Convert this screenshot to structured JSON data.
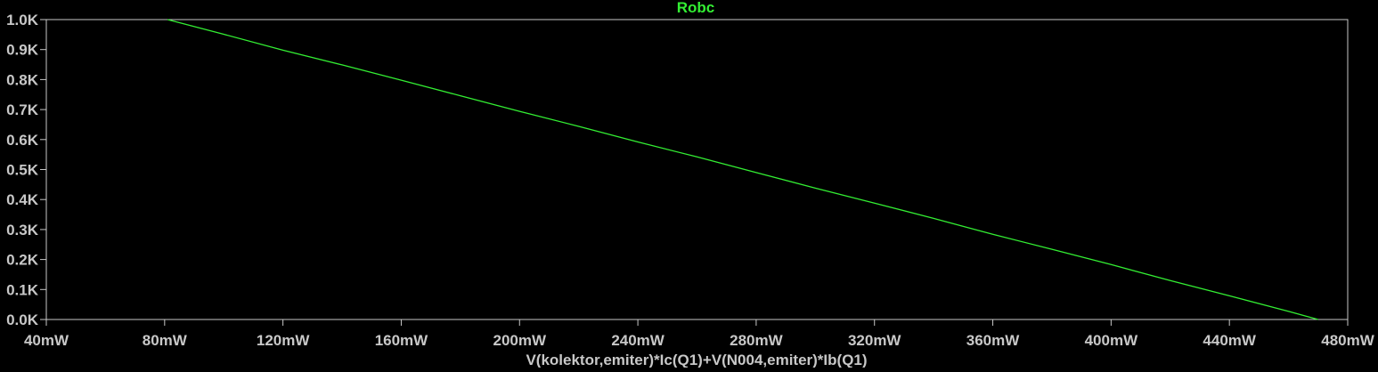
{
  "chart_data": {
    "type": "line",
    "title": "Robc",
    "xlabel": "V(kolektor,emiter)*Ic(Q1)+V(N004,emiter)*Ib(Q1)",
    "ylabel": "",
    "xlim": [
      40,
      480
    ],
    "ylim": [
      0,
      1000
    ],
    "x_ticks": [
      40,
      80,
      120,
      160,
      200,
      240,
      280,
      320,
      360,
      400,
      440,
      480
    ],
    "x_tick_labels": [
      "40mW",
      "80mW",
      "120mW",
      "160mW",
      "200mW",
      "240mW",
      "280mW",
      "320mW",
      "360mW",
      "400mW",
      "440mW",
      "480mW"
    ],
    "y_ticks": [
      0,
      100,
      200,
      300,
      400,
      500,
      600,
      700,
      800,
      900,
      1000
    ],
    "y_tick_labels": [
      "0.0K",
      "0.1K",
      "0.2K",
      "0.3K",
      "0.4K",
      "0.5K",
      "0.6K",
      "0.7K",
      "0.8K",
      "0.9K",
      "1.0K"
    ],
    "grid": false,
    "series": [
      {
        "name": "Robc",
        "x": [
          81.0,
          100.0,
          120.0,
          140.0,
          160.0,
          180.0,
          200.0,
          220.0,
          240.0,
          260.0,
          280.0,
          300.0,
          320.0,
          340.0,
          360.0,
          380.0,
          400.0,
          420.0,
          440.0,
          460.0,
          470.0
        ],
        "values": [
          1000,
          951,
          898,
          849,
          798,
          746,
          694,
          644,
          592,
          542,
          490,
          438,
          388,
          337,
          284,
          234,
          183,
          130,
          79,
          27,
          0
        ]
      }
    ],
    "colors": {
      "background": "#000000",
      "frame": "#c8c8c8",
      "axis_text": "#c8c8c8",
      "trace": "#33ee33",
      "title": "#33ee33"
    }
  }
}
